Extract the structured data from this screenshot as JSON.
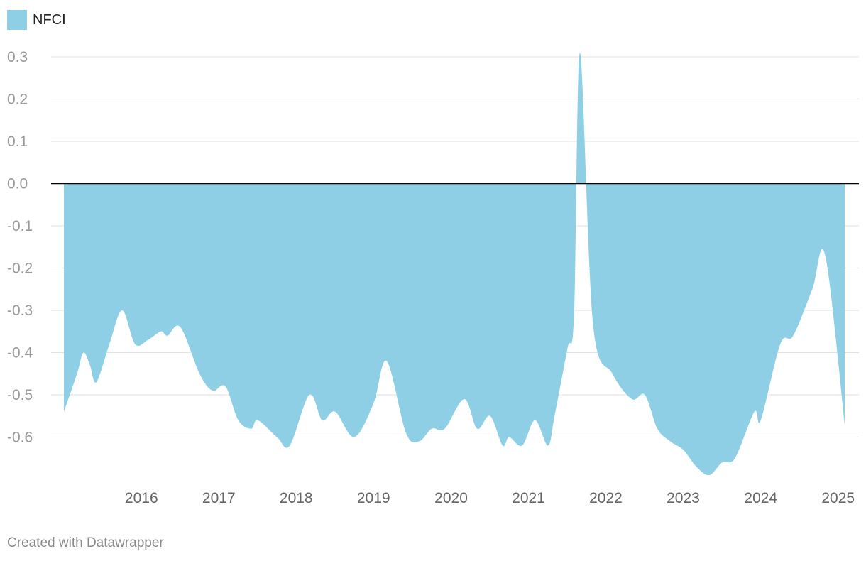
{
  "credit": "Created with Datawrapper",
  "colors": {
    "area": "#8ecfe6",
    "zero_line": "#000000",
    "grid": "#e2e2e2"
  },
  "chart_data": {
    "type": "area",
    "title": "",
    "xlabel": "",
    "ylabel": "",
    "legend": "top-left",
    "grid": true,
    "ylim": [
      -0.7,
      0.3
    ],
    "xlim": [
      "2015-07-01",
      "2025-08-01"
    ],
    "y_ticks": [
      "0.3",
      "0.2",
      "0.1",
      "0.0",
      "-0.1",
      "-0.2",
      "-0.3",
      "-0.4",
      "-0.5",
      "-0.6"
    ],
    "x_ticks": [
      {
        "label": "2016",
        "date": "2016-07-01"
      },
      {
        "label": "2017",
        "date": "2017-07-01"
      },
      {
        "label": "2018",
        "date": "2018-07-01"
      },
      {
        "label": "2019",
        "date": "2019-07-01"
      },
      {
        "label": "2020",
        "date": "2020-07-01"
      },
      {
        "label": "2021",
        "date": "2021-07-01"
      },
      {
        "label": "2022",
        "date": "2022-07-01"
      },
      {
        "label": "2023",
        "date": "2023-07-01"
      },
      {
        "label": "2024",
        "date": "2024-07-01"
      },
      {
        "label": "2025",
        "date": "2025-07-01"
      }
    ],
    "series": [
      {
        "name": "NFCI",
        "points": [
          [
            "2015-07-01",
            -0.54
          ],
          [
            "2015-09-01",
            -0.45
          ],
          [
            "2015-10-01",
            -0.4
          ],
          [
            "2015-11-01",
            -0.43
          ],
          [
            "2015-12-01",
            -0.47
          ],
          [
            "2016-02-01",
            -0.38
          ],
          [
            "2016-04-01",
            -0.3
          ],
          [
            "2016-06-01",
            -0.38
          ],
          [
            "2016-08-01",
            -0.37
          ],
          [
            "2016-10-01",
            -0.35
          ],
          [
            "2016-11-01",
            -0.36
          ],
          [
            "2017-01-01",
            -0.34
          ],
          [
            "2017-04-01",
            -0.45
          ],
          [
            "2017-06-01",
            -0.49
          ],
          [
            "2017-08-01",
            -0.48
          ],
          [
            "2017-10-01",
            -0.56
          ],
          [
            "2017-12-01",
            -0.58
          ],
          [
            "2018-01-01",
            -0.56
          ],
          [
            "2018-04-01",
            -0.6
          ],
          [
            "2018-06-01",
            -0.62
          ],
          [
            "2018-09-01",
            -0.5
          ],
          [
            "2018-11-01",
            -0.56
          ],
          [
            "2019-01-01",
            -0.54
          ],
          [
            "2019-04-01",
            -0.6
          ],
          [
            "2019-07-01",
            -0.52
          ],
          [
            "2019-09-01",
            -0.42
          ],
          [
            "2019-12-01",
            -0.59
          ],
          [
            "2020-02-01",
            -0.61
          ],
          [
            "2020-04-01",
            -0.58
          ],
          [
            "2020-06-01",
            -0.58
          ],
          [
            "2020-09-01",
            -0.51
          ],
          [
            "2020-11-01",
            -0.58
          ],
          [
            "2021-01-01",
            -0.55
          ],
          [
            "2021-03-01",
            -0.62
          ],
          [
            "2021-04-01",
            -0.6
          ],
          [
            "2021-06-01",
            -0.62
          ],
          [
            "2021-08-01",
            -0.56
          ],
          [
            "2021-10-01",
            -0.62
          ],
          [
            "2021-11-01",
            -0.55
          ],
          [
            "2022-01-01",
            -0.39
          ],
          [
            "2022-02-01",
            -0.31
          ],
          [
            "2022-03-01",
            0.31
          ],
          [
            "2022-05-01",
            -0.33
          ],
          [
            "2022-08-01",
            -0.45
          ],
          [
            "2022-11-01",
            -0.51
          ],
          [
            "2023-01-01",
            -0.5
          ],
          [
            "2023-03-01",
            -0.58
          ],
          [
            "2023-05-01",
            -0.61
          ],
          [
            "2023-07-01",
            -0.63
          ],
          [
            "2023-09-01",
            -0.67
          ],
          [
            "2023-11-01",
            -0.69
          ],
          [
            "2024-01-01",
            -0.66
          ],
          [
            "2024-03-01",
            -0.65
          ],
          [
            "2024-06-01",
            -0.54
          ],
          [
            "2024-07-01",
            -0.56
          ],
          [
            "2024-10-01",
            -0.38
          ],
          [
            "2024-12-01",
            -0.36
          ],
          [
            "2025-03-01",
            -0.25
          ],
          [
            "2025-05-01",
            -0.17
          ],
          [
            "2025-08-01",
            -0.57
          ]
        ]
      }
    ]
  }
}
